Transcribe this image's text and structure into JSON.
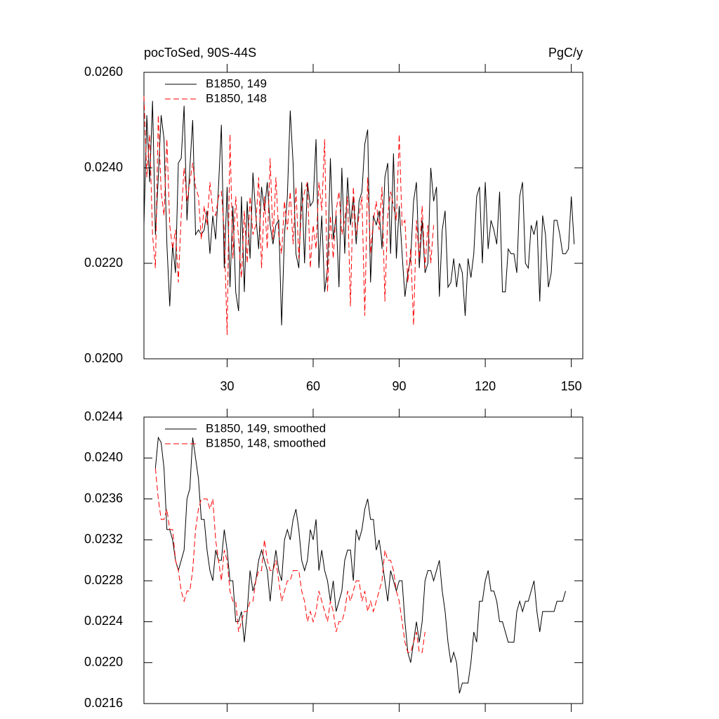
{
  "chart_data": [
    {
      "type": "line",
      "title": "pocToSed, 90S-44S",
      "subtitle": "PgC/y",
      "x": [
        1,
        2,
        3,
        4,
        5,
        6,
        7,
        8,
        9,
        10,
        11,
        12,
        13,
        14,
        15,
        16,
        17,
        18,
        19,
        20,
        21,
        22,
        23,
        24,
        25,
        26,
        27,
        28,
        29,
        30,
        31,
        32,
        33,
        34,
        35,
        36,
        37,
        38,
        39,
        40,
        41,
        42,
        43,
        44,
        45,
        46,
        47,
        48,
        49,
        50,
        51,
        52,
        53,
        54,
        55,
        56,
        57,
        58,
        59,
        60,
        61,
        62,
        63,
        64,
        65,
        66,
        67,
        68,
        69,
        70,
        71,
        72,
        73,
        74,
        75,
        76,
        77,
        78,
        79,
        80,
        81,
        82,
        83,
        84,
        85,
        86,
        87,
        88,
        89,
        90,
        91,
        92,
        93,
        94,
        95,
        96,
        97,
        98,
        99,
        100,
        101,
        102,
        103,
        104,
        105,
        106,
        107,
        108,
        109,
        110,
        111,
        112,
        113,
        114,
        115,
        116,
        117,
        118,
        119,
        120,
        121,
        122,
        123,
        124,
        125,
        126,
        127,
        128,
        129,
        130,
        131,
        132,
        133,
        134,
        135,
        136,
        137,
        138,
        139,
        140,
        141,
        142,
        143,
        144,
        145,
        146,
        147,
        148,
        149,
        150,
        151
      ],
      "series": [
        {
          "name": "B1850, 149",
          "color": "#000000",
          "dash": "solid",
          "values": [
            0.0228,
            0.0251,
            0.0237,
            0.0254,
            0.0226,
            0.0238,
            0.0251,
            0.0246,
            0.0224,
            0.0211,
            0.0224,
            0.0218,
            0.0241,
            0.0242,
            0.0253,
            0.0229,
            0.024,
            0.025,
            0.0226,
            0.0227,
            0.0226,
            0.0227,
            0.0231,
            0.0222,
            0.023,
            0.0225,
            0.0236,
            0.0249,
            0.0219,
            0.0236,
            0.0215,
            0.0232,
            0.0214,
            0.021,
            0.0234,
            0.0214,
            0.0233,
            0.0221,
            0.0239,
            0.023,
            0.0223,
            0.0236,
            0.0231,
            0.0237,
            0.0228,
            0.0224,
            0.0228,
            0.0229,
            0.0207,
            0.0226,
            0.0234,
            0.0252,
            0.0241,
            0.0222,
            0.0219,
            0.0237,
            0.022,
            0.0237,
            0.0232,
            0.0233,
            0.0246,
            0.0219,
            0.023,
            0.0214,
            0.0219,
            0.0242,
            0.0225,
            0.023,
            0.0215,
            0.024,
            0.0222,
            0.0238,
            0.0228,
            0.0234,
            0.0224,
            0.0233,
            0.0235,
            0.0245,
            0.0248,
            0.0216,
            0.023,
            0.0228,
            0.0231,
            0.0223,
            0.0238,
            0.0241,
            0.0222,
            0.0243,
            0.0221,
            0.0232,
            0.0222,
            0.0213,
            0.0218,
            0.0221,
            0.0233,
            0.0237,
            0.0219,
            0.0229,
            0.0218,
            0.022,
            0.024,
            0.0233,
            0.0236,
            0.0213,
            0.0227,
            0.0231,
            0.0215,
            0.0216,
            0.0221,
            0.0215,
            0.022,
            0.0218,
            0.0209,
            0.0221,
            0.0217,
            0.0222,
            0.0234,
            0.0236,
            0.022,
            0.0237,
            0.0223,
            0.0229,
            0.0227,
            0.0224,
            0.0235,
            0.0214,
            0.0214,
            0.0223,
            0.0222,
            0.0222,
            0.0218,
            0.0234,
            0.0237,
            0.022,
            0.0219,
            0.0228,
            0.0226,
            0.0229,
            0.0212,
            0.023,
            0.0226,
            0.0215,
            0.0218,
            0.0229,
            0.0229,
            0.0226,
            0.0222,
            0.0222,
            0.0223,
            0.0234,
            0.0224
          ]
        },
        {
          "name": "B1850, 148",
          "color": "#ff0000",
          "dash": "dashed",
          "values": [
            0.0255,
            0.0238,
            0.0247,
            0.0226,
            0.0219,
            0.0251,
            0.0235,
            0.023,
            0.0246,
            0.0228,
            0.0223,
            0.0227,
            0.0216,
            0.023,
            0.024,
            0.0233,
            0.0237,
            0.0241,
            0.0236,
            0.0234,
            0.0225,
            0.0232,
            0.0228,
            0.0237,
            0.0231,
            0.023,
            0.0234,
            0.0235,
            0.0227,
            0.0205,
            0.0247,
            0.0221,
            0.0234,
            0.0225,
            0.0217,
            0.0231,
            0.022,
            0.0234,
            0.0226,
            0.0228,
            0.0238,
            0.0219,
            0.0234,
            0.0223,
            0.0242,
            0.0225,
            0.0238,
            0.0226,
            0.0222,
            0.0233,
            0.0227,
            0.0235,
            0.0224,
            0.0236,
            0.0221,
            0.0232,
            0.0235,
            0.0237,
            0.0219,
            0.0228,
            0.0223,
            0.0237,
            0.0231,
            0.0246,
            0.0214,
            0.023,
            0.0221,
            0.0231,
            0.0235,
            0.0226,
            0.0229,
            0.0234,
            0.0211,
            0.0236,
            0.0226,
            0.023,
            0.0234,
            0.0209,
            0.0238,
            0.0222,
            0.0229,
            0.0233,
            0.0227,
            0.0236,
            0.0212,
            0.023,
            0.0235,
            0.0232,
            0.0229,
            0.0247,
            0.0228,
            0.0229,
            0.0216,
            0.0223,
            0.0207,
            0.0229,
            0.0221,
            0.0232,
            0.0219,
            0.0228,
            0.022,
            0.0228,
            null,
            null,
            null,
            null,
            null,
            null,
            null,
            null,
            null,
            null,
            null,
            null,
            null,
            null,
            null,
            null,
            null,
            null,
            null,
            null,
            null,
            null,
            null,
            null,
            null,
            null,
            null,
            null,
            null,
            null,
            null,
            null,
            null,
            null,
            null,
            null,
            null,
            null,
            null,
            null,
            null,
            null,
            null,
            null,
            null,
            null,
            null,
            null,
            null
          ]
        }
      ],
      "xlim": [
        1,
        154
      ],
      "xticks": [
        30,
        60,
        90,
        120,
        150
      ],
      "ylim": [
        0.02,
        0.026
      ],
      "yticks": [
        {
          "value": 0.02,
          "label": "0.0200"
        },
        {
          "value": 0.022,
          "label": "0.0220"
        },
        {
          "value": 0.024,
          "label": "0.0240"
        },
        {
          "value": 0.026,
          "label": "0.0260"
        }
      ],
      "legend": "top-left"
    },
    {
      "type": "line",
      "x": [
        1,
        2,
        3,
        4,
        5,
        6,
        7,
        8,
        9,
        10,
        11,
        12,
        13,
        14,
        15,
        16,
        17,
        18,
        19,
        20,
        21,
        22,
        23,
        24,
        25,
        26,
        27,
        28,
        29,
        30,
        31,
        32,
        33,
        34,
        35,
        36,
        37,
        38,
        39,
        40,
        41,
        42,
        43,
        44,
        45,
        46,
        47,
        48,
        49,
        50,
        51,
        52,
        53,
        54,
        55,
        56,
        57,
        58,
        59,
        60,
        61,
        62,
        63,
        64,
        65,
        66,
        67,
        68,
        69,
        70,
        71,
        72,
        73,
        74,
        75,
        76,
        77,
        78,
        79,
        80,
        81,
        82,
        83,
        84,
        85,
        86,
        87,
        88,
        89,
        90,
        91,
        92,
        93,
        94,
        95,
        96,
        97,
        98,
        99,
        100,
        101,
        102,
        103,
        104,
        105,
        106,
        107,
        108,
        109,
        110,
        111,
        112,
        113,
        114,
        115,
        116,
        117,
        118,
        119,
        120,
        121,
        122,
        123,
        124,
        125,
        126,
        127,
        128,
        129,
        130,
        131,
        132,
        133,
        134,
        135,
        136,
        137,
        138,
        139,
        140,
        141,
        142,
        143,
        144,
        145,
        146,
        147,
        148,
        149,
        150,
        151
      ],
      "series": [
        {
          "name": "B1850, 149, smoothed",
          "color": "#000000",
          "dash": "solid",
          "values": [
            null,
            null,
            null,
            null,
            0.0239,
            0.0242,
            0.02415,
            0.0239,
            0.0233,
            0.0233,
            0.0232,
            0.023,
            0.0229,
            0.023,
            0.0231,
            0.0236,
            0.0237,
            0.0242,
            0.024,
            0.0238,
            0.0234,
            0.0234,
            0.0231,
            0.0229,
            0.0228,
            0.0231,
            0.023,
            0.023,
            0.0233,
            0.0231,
            0.0228,
            0.0228,
            0.0224,
            0.0224,
            0.0225,
            0.0222,
            0.0225,
            0.0229,
            0.0227,
            0.0228,
            0.023,
            0.0231,
            0.023,
            0.0229,
            0.0226,
            0.0229,
            0.0231,
            0.0229,
            0.0228,
            0.0232,
            0.0233,
            0.0232,
            0.0234,
            0.0235,
            0.0233,
            0.023,
            0.0229,
            0.023,
            0.0233,
            0.0232,
            0.0234,
            0.0229,
            0.0231,
            0.0229,
            0.0228,
            0.0226,
            0.0228,
            0.0225,
            0.0226,
            0.0227,
            0.023,
            0.0231,
            0.0231,
            0.0228,
            0.0233,
            0.0232,
            0.0233,
            0.0235,
            0.0236,
            0.0234,
            0.0234,
            0.0231,
            0.0232,
            0.023,
            0.0228,
            0.0226,
            0.0229,
            0.0228,
            0.0227,
            0.0228,
            0.0228,
            0.0224,
            0.0221,
            0.022,
            0.0222,
            0.0224,
            0.0222,
            0.0224,
            0.0228,
            0.0229,
            0.0229,
            0.0228,
            0.0229,
            0.023,
            0.0227,
            0.0225,
            0.0222,
            0.022,
            0.0221,
            0.022,
            0.0217,
            0.0218,
            0.0218,
            0.0218,
            0.022,
            0.0223,
            0.0222,
            0.0226,
            0.0226,
            0.0228,
            0.0229,
            0.0227,
            0.0227,
            0.0226,
            0.0224,
            0.0224,
            0.0223,
            0.0222,
            0.0222,
            0.0222,
            0.0225,
            0.0226,
            0.0225,
            0.0226,
            0.0226,
            0.0227,
            0.0228,
            0.0225,
            0.0223,
            0.0225,
            0.0225,
            0.0225,
            0.0225,
            0.0225,
            0.0226,
            0.0226,
            0.0226,
            0.0227,
            null,
            null,
            null
          ]
        },
        {
          "name": "B1850, 148, smoothed",
          "color": "#ff0000",
          "dash": "dashed",
          "values": [
            null,
            null,
            null,
            null,
            0.0239,
            0.0236,
            0.0234,
            0.0234,
            0.0235,
            0.0233,
            0.0233,
            0.023,
            0.0229,
            0.0227,
            0.0226,
            0.0227,
            0.0227,
            0.0229,
            0.0233,
            0.0235,
            0.0236,
            0.0236,
            0.0236,
            0.0235,
            0.0236,
            0.0232,
            0.023,
            0.0228,
            0.0231,
            0.023,
            0.0227,
            0.0226,
            0.0226,
            0.0223,
            0.0224,
            0.0225,
            0.0225,
            0.0226,
            0.0226,
            0.0228,
            0.0229,
            0.0229,
            0.0232,
            0.023,
            0.0229,
            0.0229,
            0.023,
            0.0228,
            0.0226,
            0.0227,
            0.0228,
            0.0228,
            0.0229,
            0.0229,
            0.0229,
            0.0227,
            0.0226,
            0.0224,
            0.0225,
            0.0224,
            0.0225,
            0.0227,
            0.0226,
            0.0225,
            0.0224,
            0.0226,
            0.0225,
            0.0223,
            0.0224,
            0.0224,
            0.0225,
            0.0227,
            0.0226,
            0.0227,
            0.0228,
            0.0228,
            0.0226,
            0.0227,
            0.0225,
            0.0226,
            0.0225,
            0.0226,
            0.0227,
            0.0228,
            0.0231,
            0.023,
            0.023,
            0.0229,
            0.0227,
            0.0226,
            0.0224,
            0.0222,
            0.0221,
            0.0221,
            0.0222,
            0.0223,
            0.0221,
            0.0221,
            0.0223,
            null,
            null,
            null,
            null,
            null,
            null,
            null,
            null,
            null,
            null,
            null,
            null,
            null,
            null,
            null,
            null,
            null,
            null,
            null,
            null,
            null,
            null,
            null,
            null,
            null,
            null,
            null,
            null,
            null,
            null,
            null,
            null,
            null,
            null,
            null,
            null,
            null,
            null,
            null,
            null,
            null,
            null,
            null,
            null,
            null,
            null,
            null,
            null,
            null,
            null,
            null,
            null
          ]
        }
      ],
      "xlim": [
        1,
        154
      ],
      "xticks": [
        30,
        60,
        90,
        120,
        150
      ],
      "ylim": [
        0.0216,
        0.0244
      ],
      "yticks": [
        {
          "value": 0.0216,
          "label": "0.0216"
        },
        {
          "value": 0.022,
          "label": "0.0220"
        },
        {
          "value": 0.0224,
          "label": "0.0224"
        },
        {
          "value": 0.0228,
          "label": "0.0228"
        },
        {
          "value": 0.0232,
          "label": "0.0232"
        },
        {
          "value": 0.0236,
          "label": "0.0236"
        },
        {
          "value": 0.024,
          "label": "0.0240"
        },
        {
          "value": 0.0244,
          "label": "0.0244"
        }
      ],
      "legend": "top-left"
    }
  ]
}
